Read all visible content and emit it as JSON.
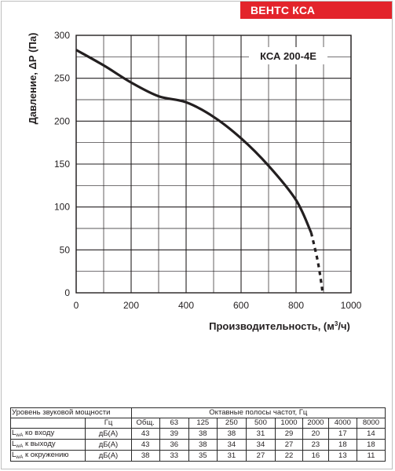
{
  "brand": "ВЕНТС КСА",
  "chart_data": {
    "type": "line",
    "annotation": "КСА 200-4Е",
    "xlabel": "Производительность, (м",
    "xlabel_sup": "3",
    "xlabel_tail": "/ч)",
    "ylabel": "Давление, ΔР (Па)",
    "xlim": [
      0,
      1000
    ],
    "ylim": [
      0,
      300
    ],
    "xticks": [
      0,
      200,
      400,
      600,
      800,
      1000
    ],
    "yticks": [
      0,
      50,
      100,
      150,
      200,
      250,
      300
    ],
    "grid": true,
    "minor_x_step": 100,
    "minor_y_step": 25,
    "line_color": "#231f20",
    "series": [
      {
        "values_solid": [
          [
            0,
            283
          ],
          [
            100,
            265
          ],
          [
            200,
            245
          ],
          [
            300,
            229
          ],
          [
            400,
            222
          ],
          [
            500,
            205
          ],
          [
            600,
            180
          ],
          [
            700,
            148
          ],
          [
            800,
            108
          ],
          [
            855,
            70
          ]
        ],
        "values_dashed": [
          [
            855,
            70
          ],
          [
            880,
            35
          ],
          [
            897,
            0
          ]
        ]
      }
    ]
  },
  "sound_table": {
    "title": "Уровень звуковой мощности",
    "unit_header": "Гц",
    "total_header": "Общ.",
    "bands_title": "Октавные полосы частот, Гц",
    "bands": [
      "63",
      "125",
      "250",
      "500",
      "1000",
      "2000",
      "4000",
      "8000"
    ],
    "rows": [
      {
        "prefix": "L",
        "sub": "wA",
        "label": " ко входу",
        "unit": "дБ(А)",
        "total": "43",
        "values": [
          "39",
          "38",
          "38",
          "31",
          "29",
          "20",
          "17",
          "14"
        ]
      },
      {
        "prefix": "L",
        "sub": "wA",
        "label": " к выходу",
        "unit": "дБ(А)",
        "total": "43",
        "values": [
          "36",
          "38",
          "34",
          "34",
          "27",
          "23",
          "18",
          "18"
        ]
      },
      {
        "prefix": "L",
        "sub": "wA",
        "label": " к окружению",
        "unit": "дБ(А)",
        "total": "38",
        "values": [
          "33",
          "35",
          "31",
          "27",
          "22",
          "16",
          "13",
          "11"
        ]
      }
    ]
  }
}
